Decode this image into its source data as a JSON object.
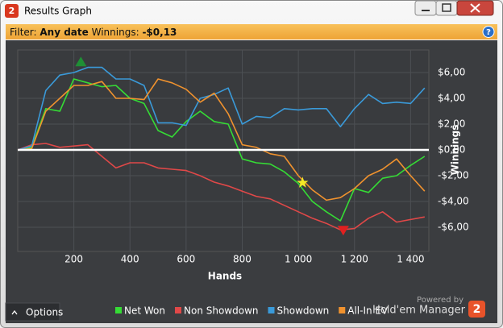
{
  "window": {
    "app_icon": "2",
    "title": "Results Graph"
  },
  "filter": {
    "prefix": "Filter:",
    "date": "Any date",
    "winnings_label": "Winnings:",
    "winnings": "-$0,13",
    "help": "?"
  },
  "chart_data": {
    "type": "line",
    "x_label": "Hands",
    "y_label": "Winnings",
    "x": [
      0,
      50,
      100,
      150,
      200,
      250,
      300,
      350,
      400,
      450,
      500,
      550,
      600,
      650,
      700,
      750,
      800,
      850,
      900,
      950,
      1000,
      1050,
      1100,
      1150,
      1200,
      1250,
      1300,
      1350,
      1400,
      1450
    ],
    "series": [
      {
        "name": "Net Won",
        "color": "#35dc35",
        "values": [
          0,
          0.2,
          3.2,
          3.0,
          5.5,
          5.2,
          4.9,
          5.0,
          4.0,
          3.6,
          1.5,
          1.0,
          2.2,
          3.0,
          2.2,
          2.0,
          -0.7,
          -1.0,
          -1.1,
          -1.7,
          -2.6,
          -4.0,
          -4.8,
          -5.5,
          -3.0,
          -3.3,
          -2.2,
          -2.0,
          -1.2,
          -0.5
        ]
      },
      {
        "name": "Non Showdown",
        "color": "#e04848",
        "values": [
          0,
          0.4,
          0.5,
          0.2,
          0.3,
          0.4,
          -0.5,
          -1.4,
          -1.0,
          -1.0,
          -1.4,
          -1.5,
          -1.6,
          -2.0,
          -2.5,
          -2.8,
          -3.2,
          -3.6,
          -3.8,
          -4.3,
          -4.8,
          -5.3,
          -5.7,
          -6.2,
          -6.1,
          -5.3,
          -4.8,
          -5.6,
          -5.4,
          -5.2
        ]
      },
      {
        "name": "Showdown",
        "color": "#3a9ad9",
        "values": [
          0,
          0.3,
          4.6,
          5.8,
          6.0,
          6.4,
          6.4,
          5.5,
          5.5,
          5.0,
          2.1,
          2.1,
          1.9,
          4.0,
          4.3,
          4.8,
          2.0,
          2.6,
          2.5,
          3.2,
          3.1,
          3.2,
          3.2,
          1.8,
          3.2,
          4.3,
          3.6,
          3.7,
          3.6,
          4.8
        ]
      },
      {
        "name": "All-In EV",
        "color": "#f0922e",
        "values": [
          0,
          0.1,
          3.0,
          4.0,
          5.0,
          5.0,
          5.3,
          4.0,
          4.0,
          3.9,
          5.5,
          5.2,
          4.7,
          3.7,
          4.4,
          2.8,
          0.4,
          0.2,
          -0.3,
          -0.5,
          -2.0,
          -3.1,
          -3.9,
          -3.7,
          -3.0,
          -2.0,
          -1.5,
          -0.7,
          -2.0,
          -3.2
        ]
      }
    ],
    "markers": [
      {
        "x": 225,
        "y": 6.8,
        "color": "#1f8f35",
        "shape": "triangle-up"
      },
      {
        "x": 1160,
        "y": -6.2,
        "color": "#e02020",
        "shape": "triangle-down"
      },
      {
        "x": 1015,
        "y": -2.55,
        "color": "#f4e826",
        "shape": "star"
      }
    ],
    "xlim": [
      0,
      1465
    ],
    "ylim": [
      -7.875,
      7.75
    ],
    "xticks": [
      200,
      400,
      600,
      800,
      {
        "value": 1000,
        "label": "1 000"
      },
      {
        "value": 1200,
        "label": "1 200"
      },
      {
        "value": 1400,
        "label": "1 400"
      }
    ],
    "yticks": [
      {
        "value": 6,
        "label": "$6,00"
      },
      {
        "value": 4,
        "label": "$4,00"
      },
      {
        "value": 2,
        "label": "$2,00"
      },
      {
        "value": 0,
        "label": "$0,00"
      },
      {
        "value": -2,
        "label": "-$2,00"
      },
      {
        "value": -4,
        "label": "-$4,00"
      },
      {
        "value": -6,
        "label": "-$6,00"
      }
    ],
    "grid": true,
    "zero_line": true,
    "legend": "bottom"
  },
  "footer": {
    "options": "Options",
    "powered_by": "Powered by",
    "brand": "Hold'em Manager",
    "brand_icon": "2"
  }
}
